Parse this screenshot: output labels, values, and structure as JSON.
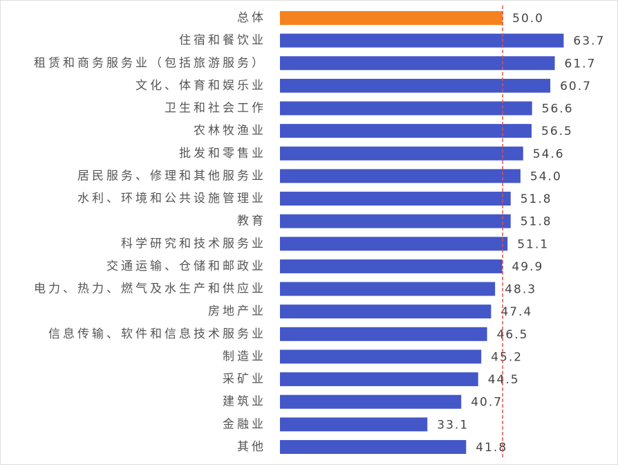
{
  "chart_data": {
    "type": "hbar",
    "categories": [
      "总体",
      "住宿和餐饮业",
      "租赁和商务服务业（包括旅游服务）",
      "文化、体育和娱乐业",
      "卫生和社会工作",
      "农林牧渔业",
      "批发和零售业",
      "居民服务、修理和其他服务业",
      "水利、环境和公共设施管理业",
      "教育",
      "科学研究和技术服务业",
      "交通运输、仓储和邮政业",
      "电力、热力、燃气及水生产和供应业",
      "房地产业",
      "信息传输、软件和信息技术服务业",
      "制造业",
      "采矿业",
      "建筑业",
      "金融业",
      "其他"
    ],
    "values": [
      50.0,
      63.7,
      61.7,
      60.7,
      56.6,
      56.5,
      54.6,
      54.0,
      51.8,
      51.8,
      51.1,
      49.9,
      48.3,
      47.4,
      46.5,
      45.2,
      44.5,
      40.7,
      33.1,
      41.8
    ],
    "value_labels": [
      "50.0",
      "63.7",
      "61.7",
      "60.7",
      "56.6",
      "56.5",
      "54.6",
      "54.0",
      "51.8",
      "51.8",
      "51.1",
      "49.9",
      "48.3",
      "47.4",
      "46.5",
      "45.2",
      "44.5",
      "40.7",
      "33.1",
      "41.8"
    ],
    "colors": [
      "#f5821f",
      "#4457c8",
      "#4457c8",
      "#4457c8",
      "#4457c8",
      "#4457c8",
      "#4457c8",
      "#4457c8",
      "#4457c8",
      "#4457c8",
      "#4457c8",
      "#4457c8",
      "#4457c8",
      "#4457c8",
      "#4457c8",
      "#4457c8",
      "#4457c8",
      "#4457c8",
      "#4457c8",
      "#4457c8"
    ],
    "xlim": [
      0,
      70
    ],
    "reference_value": 50.0,
    "reference_color": "#d9534f"
  }
}
